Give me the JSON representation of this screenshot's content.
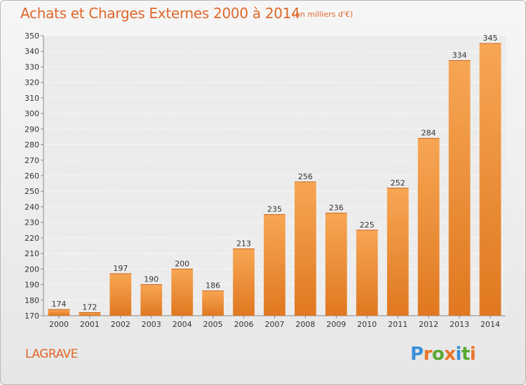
{
  "header": {
    "title": "Achats et Charges Externes 2000 à 2014",
    "unit": "(en milliers d'€)"
  },
  "footer": {
    "commune": "LAGRAVE",
    "logo_text": "Proxiti",
    "logo_colors": [
      "#3a8fd6",
      "#e8742a",
      "#5aa832",
      "#e8742a",
      "#3a8fd6",
      "#5aa832",
      "#e8742a"
    ]
  },
  "chart_data": {
    "type": "bar",
    "title": "Achats et Charges Externes 2000 à 2014",
    "subtitle": "(en milliers d'€)",
    "xlabel": "",
    "ylabel": "",
    "categories": [
      "2000",
      "2001",
      "2002",
      "2003",
      "2004",
      "2005",
      "2006",
      "2007",
      "2008",
      "2009",
      "2010",
      "2011",
      "2012",
      "2013",
      "2014"
    ],
    "values": [
      174,
      172,
      197,
      190,
      200,
      186,
      213,
      235,
      256,
      236,
      225,
      252,
      284,
      334,
      345
    ],
    "ylim": [
      170,
      350
    ],
    "yticks": [
      170,
      180,
      190,
      200,
      210,
      220,
      230,
      240,
      250,
      260,
      270,
      280,
      290,
      300,
      310,
      320,
      330,
      340,
      350
    ],
    "grid": true,
    "bar_color": "#f08a30",
    "legend": "none"
  }
}
